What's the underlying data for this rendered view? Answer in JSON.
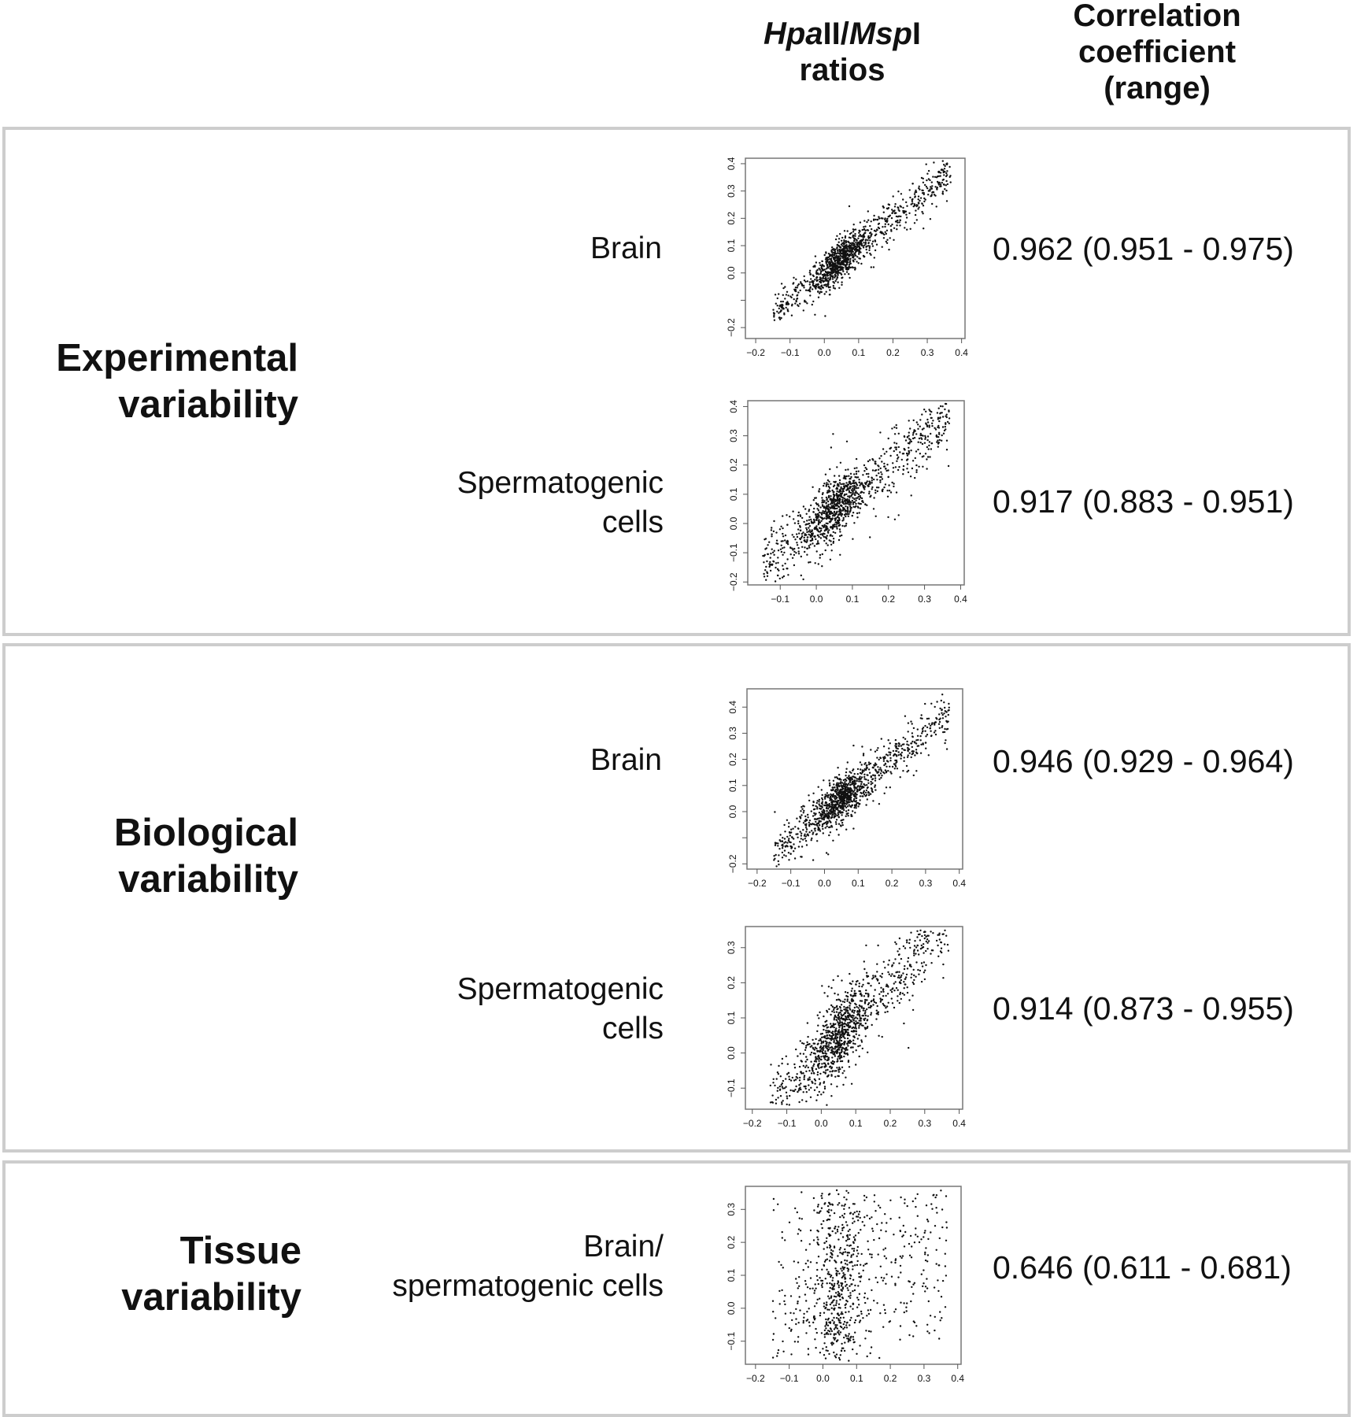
{
  "header": {
    "col1_italic_a": "Hpa",
    "col1_a": "II/",
    "col1_italic_b": "Msp",
    "col1_b": "I",
    "col1_line2": "ratios",
    "col2": [
      "Correlation",
      "coefficient",
      "(range)"
    ]
  },
  "groups": [
    {
      "label": [
        "Experimental",
        "variability"
      ]
    },
    {
      "label": [
        "Biological",
        "variability"
      ]
    },
    {
      "label": [
        "Tissue",
        "variability"
      ]
    }
  ],
  "rows": [
    {
      "label": [
        "Brain"
      ],
      "corr": "0.962 (0.951 - 0.975)"
    },
    {
      "label": [
        "Spermatogenic",
        "cells"
      ],
      "corr": "0.917 (0.883 - 0.951)"
    },
    {
      "label": [
        "Brain"
      ],
      "corr": "0.946 (0.929 - 0.964)"
    },
    {
      "label": [
        "Spermatogenic",
        "cells"
      ],
      "corr": "0.914 (0.873 - 0.955)"
    },
    {
      "label": [
        "Brain/",
        "spermatogenic cells"
      ],
      "corr": "0.646 (0.611 - 0.681)"
    }
  ],
  "chart_data": [
    {
      "type": "scatter",
      "title": "Experimental variability - Brain",
      "r": 0.962,
      "xlim": [
        -0.23,
        0.41
      ],
      "ylim": [
        -0.24,
        0.42
      ],
      "xticks": [
        "-0.2",
        "-0.1",
        "0.0",
        "0.1",
        "0.2",
        "0.3",
        "0.4"
      ],
      "yticks": [
        "-0.2",
        "",
        "0.0",
        "0.1",
        "0.2",
        "0.3",
        "0.4"
      ],
      "ytick_values": [
        -0.2,
        -0.1,
        0,
        0.1,
        0.2,
        0.3,
        0.4
      ]
    },
    {
      "type": "scatter",
      "title": "Experimental variability - Spermatogenic cells",
      "r": 0.917,
      "xlim": [
        -0.19,
        0.41
      ],
      "ylim": [
        -0.21,
        0.42
      ],
      "xticks": [
        "-0.1",
        "0.0",
        "0.1",
        "0.2",
        "0.3",
        "0.4"
      ],
      "yticks": [
        "-0.2",
        "-0.1",
        "0.0",
        "0.1",
        "0.2",
        "0.3",
        "0.4"
      ],
      "ytick_values": [
        -0.2,
        -0.1,
        0,
        0.1,
        0.2,
        0.3,
        0.4
      ]
    },
    {
      "type": "scatter",
      "title": "Biological variability - Brain",
      "r": 0.946,
      "xlim": [
        -0.23,
        0.41
      ],
      "ylim": [
        -0.22,
        0.47
      ],
      "xticks": [
        "-0.2",
        "-0.1",
        "0.0",
        "0.1",
        "0.2",
        "0.3",
        "0.4"
      ],
      "yticks": [
        "-0.2",
        "",
        "0.0",
        "0.1",
        "0.2",
        "0.3",
        "0.4"
      ],
      "ytick_values": [
        -0.2,
        -0.1,
        0,
        0.1,
        0.2,
        0.3,
        0.4
      ]
    },
    {
      "type": "scatter",
      "title": "Biological variability - Spermatogenic cells",
      "r": 0.914,
      "xlim": [
        -0.22,
        0.41
      ],
      "ylim": [
        -0.16,
        0.36
      ],
      "xticks": [
        "-0.2",
        "-0.1",
        "0.0",
        "0.1",
        "0.2",
        "0.3",
        "0.4"
      ],
      "yticks": [
        "-0.1",
        "0.0",
        "0.1",
        "0.2",
        "0.3"
      ],
      "ytick_values": [
        -0.1,
        0,
        0.1,
        0.2,
        0.3
      ]
    },
    {
      "type": "scatter",
      "title": "Tissue variability - Brain/spermatogenic cells",
      "r": 0.646,
      "xlim": [
        -0.23,
        0.41
      ],
      "ylim": [
        -0.17,
        0.37
      ],
      "xticks": [
        "-0.2",
        "-0.1",
        "0.0",
        "0.1",
        "0.2",
        "0.3",
        "0.4"
      ],
      "yticks": [
        "-0.1",
        "0.0",
        "0.1",
        "0.2",
        "0.3"
      ],
      "ytick_values": [
        -0.1,
        0,
        0.1,
        0.2,
        0.3
      ]
    }
  ]
}
